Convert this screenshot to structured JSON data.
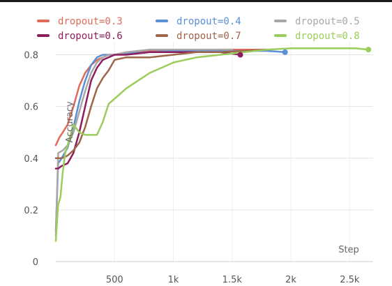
{
  "chart_data": {
    "type": "line",
    "title": "",
    "xlabel": "Step",
    "ylabel": "Accuracy",
    "xlim": [
      0,
      2700
    ],
    "ylim": [
      0,
      0.85
    ],
    "x_ticks": [
      500,
      1000,
      1500,
      2000,
      2500
    ],
    "x_tick_labels": [
      "500",
      "1k",
      "1.5k",
      "2k",
      "2.5k"
    ],
    "y_ticks": [
      0,
      0.2,
      0.4,
      0.6,
      0.8
    ],
    "y_tick_labels": [
      "0",
      "0.2",
      "0.4",
      "0.6",
      "0.8"
    ],
    "grid": true,
    "legend_position": "top",
    "series": [
      {
        "name": "dropout=0.3",
        "color": "#e06b5b",
        "x": [
          0,
          30,
          60,
          100,
          150,
          200,
          250,
          300,
          350,
          400,
          450,
          500,
          600,
          700,
          800,
          1000,
          1200,
          1400,
          1600,
          1800
        ],
        "y": [
          0.45,
          0.48,
          0.5,
          0.53,
          0.6,
          0.68,
          0.73,
          0.76,
          0.78,
          0.79,
          0.8,
          0.8,
          0.81,
          0.81,
          0.815,
          0.815,
          0.815,
          0.82,
          0.82,
          0.82
        ],
        "end_marker": false
      },
      {
        "name": "dropout=0.4",
        "color": "#5b8fd6",
        "x": [
          0,
          20,
          50,
          100,
          150,
          200,
          250,
          300,
          350,
          400,
          500,
          600,
          800,
          1000,
          1200,
          1400,
          1600,
          1800,
          1950
        ],
        "y": [
          0.12,
          0.38,
          0.4,
          0.44,
          0.52,
          0.62,
          0.7,
          0.76,
          0.79,
          0.8,
          0.8,
          0.805,
          0.81,
          0.815,
          0.815,
          0.815,
          0.815,
          0.815,
          0.81
        ],
        "end_marker": true
      },
      {
        "name": "dropout=0.5",
        "color": "#a8a8a8",
        "x": [
          0,
          20,
          60,
          100,
          150,
          200,
          250,
          300,
          350,
          400,
          450,
          500,
          600,
          800,
          1000,
          1200,
          1400,
          1500
        ],
        "y": [
          0.1,
          0.42,
          0.43,
          0.45,
          0.5,
          0.58,
          0.66,
          0.73,
          0.77,
          0.79,
          0.8,
          0.8,
          0.81,
          0.82,
          0.82,
          0.82,
          0.82,
          0.82
        ],
        "end_marker": false
      },
      {
        "name": "dropout=0.6",
        "color": "#8e1d5c",
        "x": [
          0,
          20,
          50,
          100,
          150,
          200,
          250,
          300,
          350,
          400,
          450,
          500,
          600,
          800,
          1000,
          1200,
          1400,
          1570
        ],
        "y": [
          0.36,
          0.36,
          0.37,
          0.38,
          0.42,
          0.5,
          0.6,
          0.7,
          0.75,
          0.78,
          0.79,
          0.8,
          0.8,
          0.81,
          0.81,
          0.81,
          0.81,
          0.8
        ],
        "end_marker": true
      },
      {
        "name": "dropout=0.7",
        "color": "#9e6548",
        "x": [
          0,
          50,
          100,
          150,
          200,
          250,
          300,
          350,
          400,
          450,
          500,
          600,
          700,
          800,
          900,
          1000,
          1200,
          1400,
          1600,
          1800
        ],
        "y": [
          0.4,
          0.4,
          0.41,
          0.43,
          0.46,
          0.52,
          0.6,
          0.67,
          0.71,
          0.74,
          0.78,
          0.79,
          0.79,
          0.79,
          0.795,
          0.8,
          0.81,
          0.81,
          0.815,
          0.82
        ],
        "end_marker": false
      },
      {
        "name": "dropout=0.8",
        "color": "#9acd5b",
        "x": [
          0,
          20,
          40,
          60,
          80,
          100,
          150,
          200,
          250,
          300,
          350,
          400,
          450,
          500,
          600,
          700,
          800,
          900,
          1000,
          1100,
          1200,
          1400,
          1600,
          1800,
          2000,
          2200,
          2400,
          2550,
          2660
        ],
        "y": [
          0.08,
          0.22,
          0.25,
          0.35,
          0.42,
          0.45,
          0.53,
          0.5,
          0.49,
          0.49,
          0.49,
          0.54,
          0.61,
          0.63,
          0.67,
          0.7,
          0.73,
          0.75,
          0.77,
          0.78,
          0.79,
          0.8,
          0.81,
          0.82,
          0.825,
          0.825,
          0.825,
          0.825,
          0.82
        ],
        "end_marker": true
      }
    ]
  }
}
